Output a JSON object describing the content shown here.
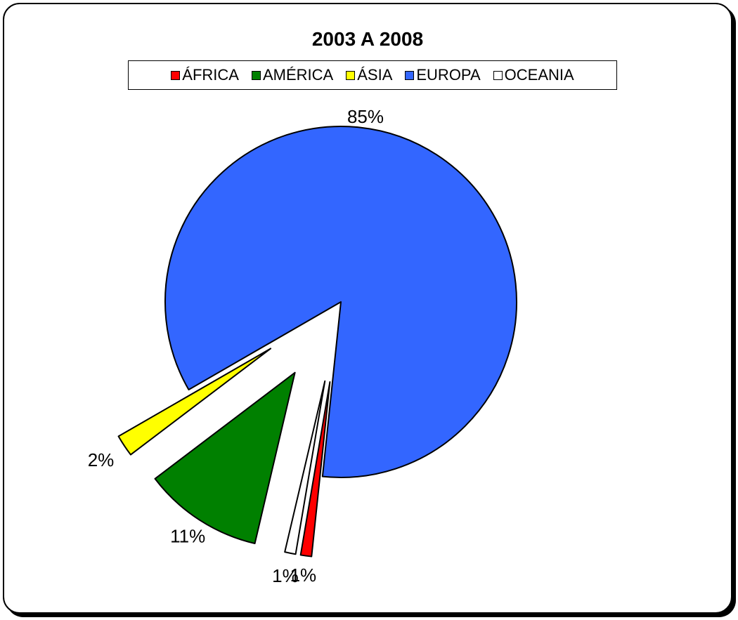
{
  "chart_data": {
    "type": "pie",
    "title": "2003 A 2008",
    "legend_position": "top",
    "slices": [
      {
        "name": "EUROPA",
        "value": 85,
        "label": "85%",
        "color": "#3366FF"
      },
      {
        "name": "ÁFRICA",
        "value": 1,
        "label": "1%",
        "color": "#FF0000"
      },
      {
        "name": "OCEANIA",
        "value": 1,
        "label": "1%",
        "color": "#FFFFFF"
      },
      {
        "name": "AMÉRICA",
        "value": 11,
        "label": "11%",
        "color": "#008000"
      },
      {
        "name": "ÁSIA",
        "value": 2,
        "label": "2%",
        "color": "#FFFF00"
      }
    ],
    "legend": [
      {
        "name": "ÁFRICA",
        "color": "#FF0000"
      },
      {
        "name": "AMÉRICA",
        "color": "#008000"
      },
      {
        "name": "ÁSIA",
        "color": "#FFFF00"
      },
      {
        "name": "EUROPA",
        "color": "#3366FF"
      },
      {
        "name": "OCEANIA",
        "color": "#FFFFFF"
      }
    ]
  }
}
